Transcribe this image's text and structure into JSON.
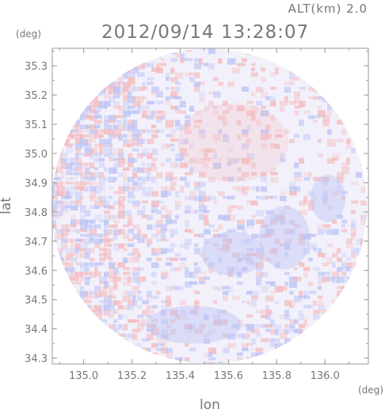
{
  "header": {
    "altitude": "ALT(km) 2.0",
    "timestamp": "2012/09/14 13:28:07"
  },
  "colors": {
    "positive": "#f4b9bb",
    "negative": "#bcc3f5",
    "axis": "#9a9a9a",
    "text": "#777777"
  },
  "chart_data": {
    "type": "heatmap",
    "title": "2012/09/14 13:28:07",
    "subtitle": "ALT(km) 2.0",
    "xlabel": "lon",
    "ylabel": "lat",
    "xunit": "(deg)",
    "yunit": "(deg)",
    "xlim": [
      134.87,
      136.18
    ],
    "ylim": [
      34.28,
      35.36
    ],
    "x_ticks": [
      "135.0",
      "135.2",
      "135.4",
      "135.6",
      "135.8",
      "136.0"
    ],
    "y_ticks": [
      "34.3",
      "34.4",
      "34.5",
      "34.6",
      "34.7",
      "34.8",
      "34.9",
      "35.0",
      "35.1",
      "35.2",
      "35.3"
    ],
    "coverage": "circular radar scan",
    "center": [
      135.52,
      34.82
    ],
    "grid": false,
    "color_scale": "blue (negative) - white - red (positive)"
  }
}
